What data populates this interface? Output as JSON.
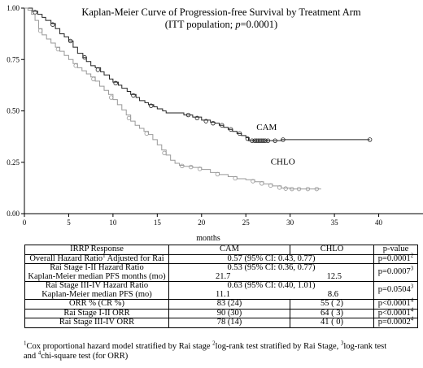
{
  "chart_data": {
    "type": "line",
    "title": "Kaplan-Meier Curve of Progression-free Survival by Treatment Arm",
    "subtitle_parts": [
      "(ITT population; ",
      "p",
      "=0.0001)"
    ],
    "xlabel": "months",
    "ylabel": "",
    "xlim": [
      0,
      45
    ],
    "ylim": [
      0,
      1
    ],
    "x_ticks": [
      0,
      5,
      10,
      15,
      20,
      25,
      30,
      35,
      40
    ],
    "y_ticks": [
      "0.00",
      "0.25",
      "0.50",
      "0.75",
      "1.00"
    ],
    "series": [
      {
        "name": "CAM",
        "color": "#222222",
        "points": [
          [
            0,
            1.0
          ],
          [
            0.5,
            1.0
          ],
          [
            0.9,
            0.985
          ],
          [
            1.5,
            0.97
          ],
          [
            2.0,
            0.955
          ],
          [
            2.4,
            0.94
          ],
          [
            3.0,
            0.925
          ],
          [
            3.5,
            0.9
          ],
          [
            4.0,
            0.875
          ],
          [
            4.5,
            0.86
          ],
          [
            5.0,
            0.84
          ],
          [
            5.5,
            0.81
          ],
          [
            6.0,
            0.78
          ],
          [
            6.6,
            0.76
          ],
          [
            7.0,
            0.74
          ],
          [
            7.5,
            0.72
          ],
          [
            8.0,
            0.71
          ],
          [
            8.6,
            0.69
          ],
          [
            9.0,
            0.675
          ],
          [
            9.6,
            0.655
          ],
          [
            10.0,
            0.64
          ],
          [
            10.6,
            0.625
          ],
          [
            11.0,
            0.61
          ],
          [
            11.6,
            0.595
          ],
          [
            12.0,
            0.58
          ],
          [
            12.6,
            0.565
          ],
          [
            13.0,
            0.55
          ],
          [
            13.6,
            0.54
          ],
          [
            14.0,
            0.53
          ],
          [
            14.6,
            0.52
          ],
          [
            15.0,
            0.51
          ],
          [
            15.6,
            0.5
          ],
          [
            16.0,
            0.49
          ],
          [
            17.0,
            0.49
          ],
          [
            18.0,
            0.48
          ],
          [
            19.0,
            0.47
          ],
          [
            20.0,
            0.455
          ],
          [
            21.0,
            0.445
          ],
          [
            21.5,
            0.44
          ],
          [
            22.0,
            0.43
          ],
          [
            22.5,
            0.42
          ],
          [
            23.0,
            0.41
          ],
          [
            23.5,
            0.4
          ],
          [
            24.0,
            0.39
          ],
          [
            24.5,
            0.38
          ],
          [
            25.0,
            0.37
          ],
          [
            25.3,
            0.355
          ],
          [
            26.0,
            0.355
          ],
          [
            27.0,
            0.355
          ],
          [
            28.0,
            0.355
          ],
          [
            29.0,
            0.36
          ],
          [
            30.0,
            0.36
          ],
          [
            33.0,
            0.36
          ],
          [
            39.0,
            0.36
          ]
        ],
        "censor_marks": [
          [
            1.2,
            0.98
          ],
          [
            3.2,
            0.92
          ],
          [
            5.2,
            0.84
          ],
          [
            6.8,
            0.76
          ],
          [
            8.3,
            0.7
          ],
          [
            10.3,
            0.635
          ],
          [
            12.3,
            0.575
          ],
          [
            14.3,
            0.525
          ],
          [
            18.5,
            0.48
          ],
          [
            19.5,
            0.465
          ],
          [
            20.5,
            0.45
          ],
          [
            21.3,
            0.44
          ],
          [
            22.3,
            0.43
          ],
          [
            23.3,
            0.41
          ],
          [
            24.3,
            0.39
          ],
          [
            25.2,
            0.365
          ],
          [
            25.7,
            0.355
          ],
          [
            26.0,
            0.355
          ],
          [
            26.2,
            0.355
          ],
          [
            26.4,
            0.355
          ],
          [
            26.6,
            0.355
          ],
          [
            26.8,
            0.355
          ],
          [
            27.0,
            0.355
          ],
          [
            27.2,
            0.355
          ],
          [
            27.5,
            0.355
          ],
          [
            28.3,
            0.355
          ],
          [
            29.2,
            0.36
          ],
          [
            39.0,
            0.36
          ]
        ],
        "end_label": "CAM"
      },
      {
        "name": "CHLO",
        "color": "#999999",
        "points": [
          [
            0,
            1.0
          ],
          [
            0.4,
            0.99
          ],
          [
            0.8,
            0.97
          ],
          [
            1.2,
            0.94
          ],
          [
            1.6,
            0.9
          ],
          [
            2.0,
            0.87
          ],
          [
            2.5,
            0.85
          ],
          [
            3.0,
            0.83
          ],
          [
            3.5,
            0.81
          ],
          [
            4.0,
            0.79
          ],
          [
            4.5,
            0.77
          ],
          [
            5.0,
            0.75
          ],
          [
            5.5,
            0.73
          ],
          [
            6.0,
            0.71
          ],
          [
            6.5,
            0.695
          ],
          [
            7.0,
            0.68
          ],
          [
            7.5,
            0.665
          ],
          [
            8.0,
            0.645
          ],
          [
            8.5,
            0.62
          ],
          [
            9.0,
            0.6
          ],
          [
            9.5,
            0.58
          ],
          [
            10.0,
            0.555
          ],
          [
            10.5,
            0.53
          ],
          [
            11.0,
            0.505
          ],
          [
            11.5,
            0.48
          ],
          [
            12.0,
            0.45
          ],
          [
            12.5,
            0.43
          ],
          [
            13.0,
            0.415
          ],
          [
            13.5,
            0.4
          ],
          [
            14.0,
            0.385
          ],
          [
            14.5,
            0.36
          ],
          [
            15.0,
            0.335
          ],
          [
            15.5,
            0.31
          ],
          [
            16.0,
            0.285
          ],
          [
            16.5,
            0.26
          ],
          [
            17.0,
            0.245
          ],
          [
            17.5,
            0.235
          ],
          [
            18.0,
            0.23
          ],
          [
            19.0,
            0.225
          ],
          [
            20.0,
            0.215
          ],
          [
            21.0,
            0.2
          ],
          [
            22.0,
            0.19
          ],
          [
            23.0,
            0.18
          ],
          [
            24.0,
            0.17
          ],
          [
            25.0,
            0.165
          ],
          [
            26.0,
            0.155
          ],
          [
            27.0,
            0.145
          ],
          [
            28.0,
            0.135
          ],
          [
            29.0,
            0.125
          ],
          [
            30.0,
            0.12
          ],
          [
            31.0,
            0.12
          ],
          [
            33.5,
            0.12
          ]
        ],
        "censor_marks": [
          [
            1.8,
            0.89
          ],
          [
            3.8,
            0.8
          ],
          [
            5.8,
            0.72
          ],
          [
            7.8,
            0.655
          ],
          [
            9.8,
            0.565
          ],
          [
            11.8,
            0.465
          ],
          [
            13.8,
            0.39
          ],
          [
            15.8,
            0.295
          ],
          [
            17.8,
            0.232
          ],
          [
            18.8,
            0.227
          ],
          [
            19.8,
            0.218
          ],
          [
            21.8,
            0.192
          ],
          [
            23.8,
            0.172
          ],
          [
            25.8,
            0.158
          ],
          [
            26.8,
            0.147
          ],
          [
            27.8,
            0.137
          ],
          [
            28.8,
            0.127
          ],
          [
            29.5,
            0.122
          ],
          [
            30.2,
            0.12
          ],
          [
            31.0,
            0.12
          ],
          [
            32.0,
            0.12
          ],
          [
            33.0,
            0.12
          ]
        ],
        "end_label": "CHLO"
      }
    ]
  },
  "table": {
    "header": [
      "IRRP Response",
      "CAM",
      "CHLO",
      "p-value"
    ],
    "rows": [
      {
        "label": "Overall Hazard Ratio",
        "label_sup": "1",
        "label_rest": " Adjusted for Rai",
        "cam": "0.57 (95% CI: 0.43, 0.77)",
        "pval": "p=0.0001",
        "pval_sup": "2"
      },
      {
        "label": "Rai Stage I-II Hazard Ratio",
        "sub_label": "Kaplan-Meier median PFS months (mo)",
        "hr": "0.53 (95% CI: 0.36, 0.77)",
        "cam": "21.7",
        "chlo": "12.5",
        "pval": "p=0.0007",
        "pval_sup": "3"
      },
      {
        "label": "Rai Stage III-IV Hazard Ratio",
        "sub_label": "Kaplan-Meier median PFS (mo)",
        "hr": "0.63 (95% CI: 0.40, 1.01)",
        "cam": "11.1",
        "chlo": "8.6",
        "pval": "p=0.0504",
        "pval_sup": "3"
      },
      {
        "label": "ORR % (CR %)",
        "cam": "83 (24)",
        "chlo": "55 ( 2)",
        "pval": "p<0.0001",
        "pval_sup": "4"
      },
      {
        "label": "Rai Stage I-II ORR",
        "cam": "90 (30)",
        "chlo": "64 ( 3)",
        "pval": "p<0.0001",
        "pval_sup": "4"
      },
      {
        "label": "Rai Stage III-IV ORR",
        "cam": "78 (14)",
        "chlo": "41 ( 0)",
        "pval": "p=0.0002",
        "pval_sup": "4"
      }
    ]
  },
  "footnote": {
    "s1": "1",
    "t1": "Cox proportional hazard model stratified by Rai stage ",
    "s2": "2",
    "t2": "log-rank test stratified by Rai Stage, ",
    "s3": "3",
    "t3": "log-rank test",
    "t4": "and ",
    "s4": "4",
    "t5": "chi-square test (for ORR)"
  }
}
